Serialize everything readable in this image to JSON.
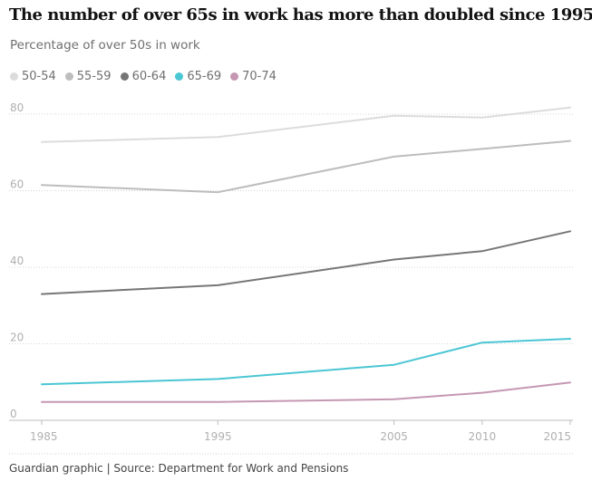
{
  "chart_data": {
    "type": "line",
    "title": "The number of over 65s in work has more than doubled since 1995",
    "subtitle": "Percentage of over 50s in work",
    "x": [
      1985,
      1995,
      2005,
      2010,
      2015
    ],
    "xlim": [
      1985,
      2015
    ],
    "ylim": [
      0,
      80
    ],
    "yticks": [
      0,
      20,
      40,
      60,
      80
    ],
    "grid": true,
    "legend_position": "top-left",
    "series": [
      {
        "name": "50-54",
        "color": "#dcdcdc",
        "values": [
          72.7,
          74,
          79.6,
          79.1,
          81.7
        ]
      },
      {
        "name": "55-59",
        "color": "#bdbdbd",
        "values": [
          61.5,
          59.6,
          68.9,
          70.9,
          73
        ]
      },
      {
        "name": "60-64",
        "color": "#767676",
        "values": [
          33,
          35.3,
          42,
          44.2,
          49.4
        ]
      },
      {
        "name": "65-69",
        "color": "#4bc6d4",
        "values": [
          9.4,
          10.8,
          14.5,
          20.3,
          21.3
        ]
      },
      {
        "name": "70-74",
        "color": "#c597b3",
        "values": [
          4.8,
          4.8,
          5.5,
          7.2,
          9.9
        ]
      }
    ]
  },
  "source": "Guardian graphic | Source: Department for Work and Pensions"
}
